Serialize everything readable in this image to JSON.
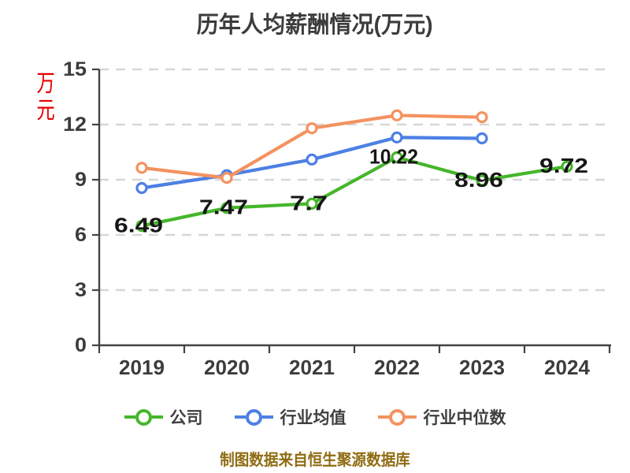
{
  "chart_data": {
    "type": "line",
    "title": "历年人均薪酬情况(万元)",
    "y_axis_unit": "万元",
    "footer_note": "制图数据来自恒生聚源数据库",
    "categories": [
      "2019",
      "2020",
      "2021",
      "2022",
      "2023",
      "2024"
    ],
    "y_ticks": [
      0,
      3,
      6,
      9,
      12,
      15
    ],
    "ylim": [
      0,
      15
    ],
    "grid": "horizontal-dashed",
    "legend_position": "bottom",
    "series": [
      {
        "name": "公司",
        "color": "#45b62b",
        "values": [
          6.49,
          7.47,
          7.7,
          10.22,
          8.96,
          9.72
        ],
        "point_labels": [
          "6.49",
          "7.47",
          "7.7",
          "10.22",
          "8.96",
          "9.72"
        ]
      },
      {
        "name": "行业均值",
        "color": "#4c80e4",
        "values": [
          8.55,
          9.25,
          10.1,
          11.3,
          11.25,
          null
        ],
        "point_labels": []
      },
      {
        "name": "行业中位数",
        "color": "#f4925f",
        "values": [
          9.65,
          9.1,
          11.8,
          12.5,
          12.4,
          null
        ],
        "point_labels": []
      }
    ],
    "colors": {
      "axis": "#434343",
      "grid": "#d7d7d7",
      "tick_text": "#3c3c3c",
      "title_text": "#3c3c3c",
      "unit_text": "#e60000",
      "footer_text": "#8f6c12",
      "point_label_text": "#161616",
      "marker_fill": "#ffffff"
    }
  }
}
